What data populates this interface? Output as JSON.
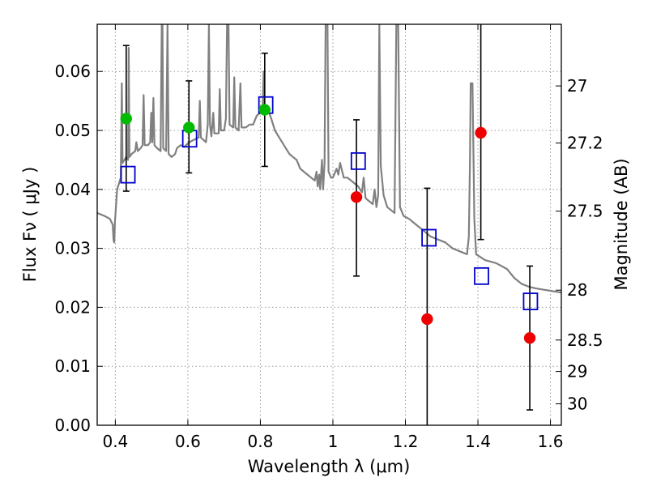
{
  "chart_data": {
    "type": "scatter",
    "xlabel": "Wavelength  λ (μm)",
    "ylabel": "Flux  Fν  ( μJy )",
    "y2label": "Magnitude (AB)",
    "xlim": [
      0.35,
      1.63
    ],
    "ylim": [
      0.0,
      0.068
    ],
    "grid": true,
    "x_ticks": [
      {
        "value": 0.4,
        "label": "0.4"
      },
      {
        "value": 0.6,
        "label": "0.6"
      },
      {
        "value": 0.8,
        "label": "0.8"
      },
      {
        "value": 1.0,
        "label": "1"
      },
      {
        "value": 1.2,
        "label": "1.2"
      },
      {
        "value": 1.4,
        "label": "1.4"
      },
      {
        "value": 1.6,
        "label": "1.6"
      }
    ],
    "y_ticks": [
      {
        "value": 0.0,
        "label": "0.00"
      },
      {
        "value": 0.01,
        "label": "0.01"
      },
      {
        "value": 0.02,
        "label": "0.02"
      },
      {
        "value": 0.03,
        "label": "0.03"
      },
      {
        "value": 0.04,
        "label": "0.04"
      },
      {
        "value": 0.05,
        "label": "0.05"
      },
      {
        "value": 0.06,
        "label": "0.06"
      }
    ],
    "y2_ticks": [
      {
        "value": 27.0,
        "label": "27"
      },
      {
        "value": 27.2,
        "label": "27.2"
      },
      {
        "value": 27.5,
        "label": "27.5"
      },
      {
        "value": 28.0,
        "label": "28"
      },
      {
        "value": 28.5,
        "label": "28.5"
      },
      {
        "value": 29.0,
        "label": "29"
      },
      {
        "value": 30.0,
        "label": "30"
      }
    ],
    "colors": {
      "model": "#808080",
      "model_photometry": "#0000cc",
      "detection": "#00bb00",
      "low_significance": "#ee0000",
      "errorbar": "#000000",
      "grid": "#999999"
    },
    "series": [
      {
        "kind": "line",
        "color": "#808080",
        "points": [
          [
            0.35,
            0.036
          ],
          [
            0.37,
            0.0355
          ],
          [
            0.385,
            0.035
          ],
          [
            0.393,
            0.034
          ],
          [
            0.395,
            0.0315
          ],
          [
            0.397,
            0.031
          ],
          [
            0.399,
            0.0345
          ],
          [
            0.405,
            0.04
          ],
          [
            0.41,
            0.041
          ],
          [
            0.415,
            0.042
          ],
          [
            0.418,
            0.058
          ],
          [
            0.42,
            0.0445
          ],
          [
            0.425,
            0.045
          ],
          [
            0.43,
            0.0455
          ],
          [
            0.435,
            0.045
          ],
          [
            0.437,
            0.064
          ],
          [
            0.439,
            0.0455
          ],
          [
            0.445,
            0.046
          ],
          [
            0.455,
            0.0465
          ],
          [
            0.458,
            0.048
          ],
          [
            0.462,
            0.0465
          ],
          [
            0.47,
            0.047
          ],
          [
            0.475,
            0.0475
          ],
          [
            0.478,
            0.056
          ],
          [
            0.481,
            0.0475
          ],
          [
            0.49,
            0.0475
          ],
          [
            0.496,
            0.048
          ],
          [
            0.499,
            0.053
          ],
          [
            0.502,
            0.048
          ],
          [
            0.505,
            0.0555
          ],
          [
            0.508,
            0.0475
          ],
          [
            0.515,
            0.047
          ],
          [
            0.525,
            0.0465
          ],
          [
            0.528,
            0.068
          ],
          [
            0.53,
            0.068
          ],
          [
            0.532,
            0.047
          ],
          [
            0.54,
            0.0465
          ],
          [
            0.544,
            0.068
          ],
          [
            0.547,
            0.046
          ],
          [
            0.555,
            0.0455
          ],
          [
            0.565,
            0.046
          ],
          [
            0.57,
            0.047
          ],
          [
            0.58,
            0.0475
          ],
          [
            0.59,
            0.0472
          ],
          [
            0.6,
            0.0478
          ],
          [
            0.61,
            0.0482
          ],
          [
            0.62,
            0.0485
          ],
          [
            0.63,
            0.0488
          ],
          [
            0.633,
            0.055
          ],
          [
            0.636,
            0.0488
          ],
          [
            0.65,
            0.048
          ],
          [
            0.655,
            0.051
          ],
          [
            0.658,
            0.068
          ],
          [
            0.661,
            0.051
          ],
          [
            0.665,
            0.049
          ],
          [
            0.67,
            0.053
          ],
          [
            0.673,
            0.0495
          ],
          [
            0.685,
            0.0495
          ],
          [
            0.688,
            0.057
          ],
          [
            0.691,
            0.05
          ],
          [
            0.7,
            0.05
          ],
          [
            0.705,
            0.052
          ],
          [
            0.708,
            0.068
          ],
          [
            0.712,
            0.068
          ],
          [
            0.715,
            0.051
          ],
          [
            0.725,
            0.0505
          ],
          [
            0.728,
            0.059
          ],
          [
            0.731,
            0.0505
          ],
          [
            0.74,
            0.05
          ],
          [
            0.745,
            0.058
          ],
          [
            0.748,
            0.0505
          ],
          [
            0.76,
            0.0505
          ],
          [
            0.77,
            0.051
          ],
          [
            0.78,
            0.051
          ],
          [
            0.79,
            0.0525
          ],
          [
            0.8,
            0.053
          ],
          [
            0.806,
            0.053
          ],
          [
            0.809,
            0.06
          ],
          [
            0.812,
            0.053
          ],
          [
            0.815,
            0.054
          ],
          [
            0.818,
            0.054
          ],
          [
            0.83,
            0.052
          ],
          [
            0.84,
            0.05
          ],
          [
            0.85,
            0.049
          ],
          [
            0.86,
            0.048
          ],
          [
            0.87,
            0.047
          ],
          [
            0.88,
            0.046
          ],
          [
            0.89,
            0.0455
          ],
          [
            0.9,
            0.045
          ],
          [
            0.91,
            0.0435
          ],
          [
            0.92,
            0.043
          ],
          [
            0.93,
            0.0425
          ],
          [
            0.94,
            0.042
          ],
          [
            0.95,
            0.0415
          ],
          [
            0.955,
            0.043
          ],
          [
            0.958,
            0.0405
          ],
          [
            0.962,
            0.0425
          ],
          [
            0.965,
            0.04
          ],
          [
            0.97,
            0.045
          ],
          [
            0.973,
            0.04
          ],
          [
            0.977,
            0.0445
          ],
          [
            0.98,
            0.068
          ],
          [
            0.985,
            0.068
          ],
          [
            0.988,
            0.043
          ],
          [
            0.995,
            0.042
          ],
          [
            1.0,
            0.042
          ],
          [
            1.01,
            0.0435
          ],
          [
            1.015,
            0.0425
          ],
          [
            1.02,
            0.0445
          ],
          [
            1.03,
            0.042
          ],
          [
            1.04,
            0.042
          ],
          [
            1.05,
            0.0415
          ],
          [
            1.06,
            0.041
          ],
          [
            1.07,
            0.0405
          ],
          [
            1.08,
            0.0395
          ],
          [
            1.085,
            0.042
          ],
          [
            1.09,
            0.0385
          ],
          [
            1.1,
            0.038
          ],
          [
            1.11,
            0.0375
          ],
          [
            1.115,
            0.04
          ],
          [
            1.12,
            0.037
          ],
          [
            1.125,
            0.039
          ],
          [
            1.128,
            0.068
          ],
          [
            1.132,
            0.044
          ],
          [
            1.14,
            0.039
          ],
          [
            1.15,
            0.037
          ],
          [
            1.16,
            0.0365
          ],
          [
            1.17,
            0.036
          ],
          [
            1.175,
            0.068
          ],
          [
            1.18,
            0.068
          ],
          [
            1.185,
            0.037
          ],
          [
            1.195,
            0.0355
          ],
          [
            1.21,
            0.035
          ],
          [
            1.23,
            0.034
          ],
          [
            1.25,
            0.033
          ],
          [
            1.27,
            0.032
          ],
          [
            1.29,
            0.0315
          ],
          [
            1.31,
            0.031
          ],
          [
            1.33,
            0.03
          ],
          [
            1.35,
            0.0295
          ],
          [
            1.37,
            0.029
          ],
          [
            1.375,
            0.032
          ],
          [
            1.378,
            0.0445
          ],
          [
            1.38,
            0.058
          ],
          [
            1.385,
            0.058
          ],
          [
            1.39,
            0.035
          ],
          [
            1.395,
            0.029
          ],
          [
            1.42,
            0.028
          ],
          [
            1.45,
            0.0275
          ],
          [
            1.48,
            0.0265
          ],
          [
            1.5,
            0.025
          ],
          [
            1.52,
            0.024
          ],
          [
            1.54,
            0.0235
          ],
          [
            1.56,
            0.0232
          ],
          [
            1.58,
            0.023
          ],
          [
            1.6,
            0.0228
          ],
          [
            1.63,
            0.0225
          ]
        ]
      },
      {
        "kind": "open-square",
        "color": "#0000cc",
        "points": [
          [
            0.435,
            0.0425
          ],
          [
            0.605,
            0.0486
          ],
          [
            0.815,
            0.0543
          ],
          [
            1.07,
            0.0448
          ],
          [
            1.265,
            0.0318
          ],
          [
            1.41,
            0.0253
          ],
          [
            1.545,
            0.021
          ]
        ]
      },
      {
        "kind": "errorbar",
        "color": "#000000",
        "points": [
          {
            "x": 0.43,
            "lo": 0.0397,
            "hi": 0.0644
          },
          {
            "x": 0.603,
            "lo": 0.0428,
            "hi": 0.0584
          },
          {
            "x": 0.812,
            "lo": 0.0439,
            "hi": 0.0631
          },
          {
            "x": 1.065,
            "lo": 0.0253,
            "hi": 0.0518
          },
          {
            "x": 1.26,
            "lo": 0.0,
            "hi": 0.0402
          },
          {
            "x": 1.408,
            "lo": 0.0315,
            "hi": 0.068
          },
          {
            "x": 1.543,
            "lo": 0.0026,
            "hi": 0.027
          }
        ]
      },
      {
        "kind": "filled-circle",
        "color": "#00bb00",
        "points": [
          [
            0.43,
            0.052
          ],
          [
            0.603,
            0.0505
          ],
          [
            0.812,
            0.0535
          ]
        ]
      },
      {
        "kind": "filled-circle",
        "color": "#ee0000",
        "points": [
          [
            1.065,
            0.0387
          ],
          [
            1.26,
            0.018
          ],
          [
            1.408,
            0.0496
          ],
          [
            1.543,
            0.0148
          ]
        ]
      }
    ]
  }
}
